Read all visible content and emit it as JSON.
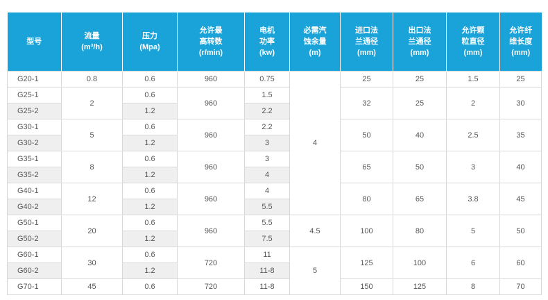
{
  "headers": {
    "model": [
      "型号"
    ],
    "flow": [
      "流量",
      "(m³/h)"
    ],
    "pressure": [
      "压力",
      "(Mpa)"
    ],
    "speed": [
      "允许最",
      "高转数",
      "(r/min)"
    ],
    "power": [
      "电机",
      "功率",
      "(kw)"
    ],
    "npsh": [
      "必需汽",
      "蚀余量",
      "(m)"
    ],
    "inlet": [
      "进口法",
      "兰通径",
      "(mm)"
    ],
    "outlet": [
      "出口法",
      "兰通径",
      "(mm)"
    ],
    "particle": [
      "允许颗",
      "粒直径",
      "(mm)"
    ],
    "fiber": [
      "允许纤",
      "维长度",
      "(mm)"
    ]
  },
  "rows": [
    {
      "model": "G20-1",
      "flow": "0.8",
      "pressure": "0.6",
      "speed": "960",
      "power": "0.75",
      "inlet": "25",
      "outlet": "25",
      "particle": "1.5",
      "fiber": "25"
    },
    {
      "model": "G25-1",
      "flow": "2",
      "pressure": "0.6",
      "speed": "960",
      "power": "1.5",
      "inlet": "32",
      "outlet": "25",
      "particle": "2",
      "fiber": "30"
    },
    {
      "model": "G25-2",
      "pressure": "1.2",
      "power": "2.2"
    },
    {
      "model": "G30-1",
      "flow": "5",
      "pressure": "0.6",
      "speed": "960",
      "power": "2.2",
      "inlet": "50",
      "outlet": "40",
      "particle": "2.5",
      "fiber": "35"
    },
    {
      "model": "G30-2",
      "pressure": "1.2",
      "power": "3"
    },
    {
      "model": "G35-1",
      "flow": "8",
      "pressure": "0.6",
      "speed": "960",
      "power": "3",
      "inlet": "65",
      "outlet": "50",
      "particle": "3",
      "fiber": "40"
    },
    {
      "model": "G35-2",
      "pressure": "1.2",
      "power": "4"
    },
    {
      "model": "G40-1",
      "flow": "12",
      "pressure": "0.6",
      "speed": "960",
      "power": "4",
      "inlet": "80",
      "outlet": "65",
      "particle": "3.8",
      "fiber": "45"
    },
    {
      "model": "G40-2",
      "pressure": "1.2",
      "power": "5.5"
    },
    {
      "model": "G50-1",
      "flow": "20",
      "pressure": "0.6",
      "speed": "960",
      "power": "5.5",
      "inlet": "100",
      "outlet": "80",
      "particle": "5",
      "fiber": "50"
    },
    {
      "model": "G50-2",
      "pressure": "1.2",
      "power": "7.5"
    },
    {
      "model": "G60-1",
      "flow": "30",
      "pressure": "0.6",
      "speed": "720",
      "power": "11",
      "inlet": "125",
      "outlet": "100",
      "particle": "6",
      "fiber": "60"
    },
    {
      "model": "G60-2",
      "pressure": "1.2",
      "power": "11-8"
    },
    {
      "model": "G70-1",
      "flow": "45",
      "pressure": "0.6",
      "speed": "720",
      "power": "11-8",
      "inlet": "150",
      "outlet": "125",
      "particle": "8",
      "fiber": "70"
    }
  ],
  "npsh_groups": [
    "4",
    "4.5",
    "5"
  ]
}
